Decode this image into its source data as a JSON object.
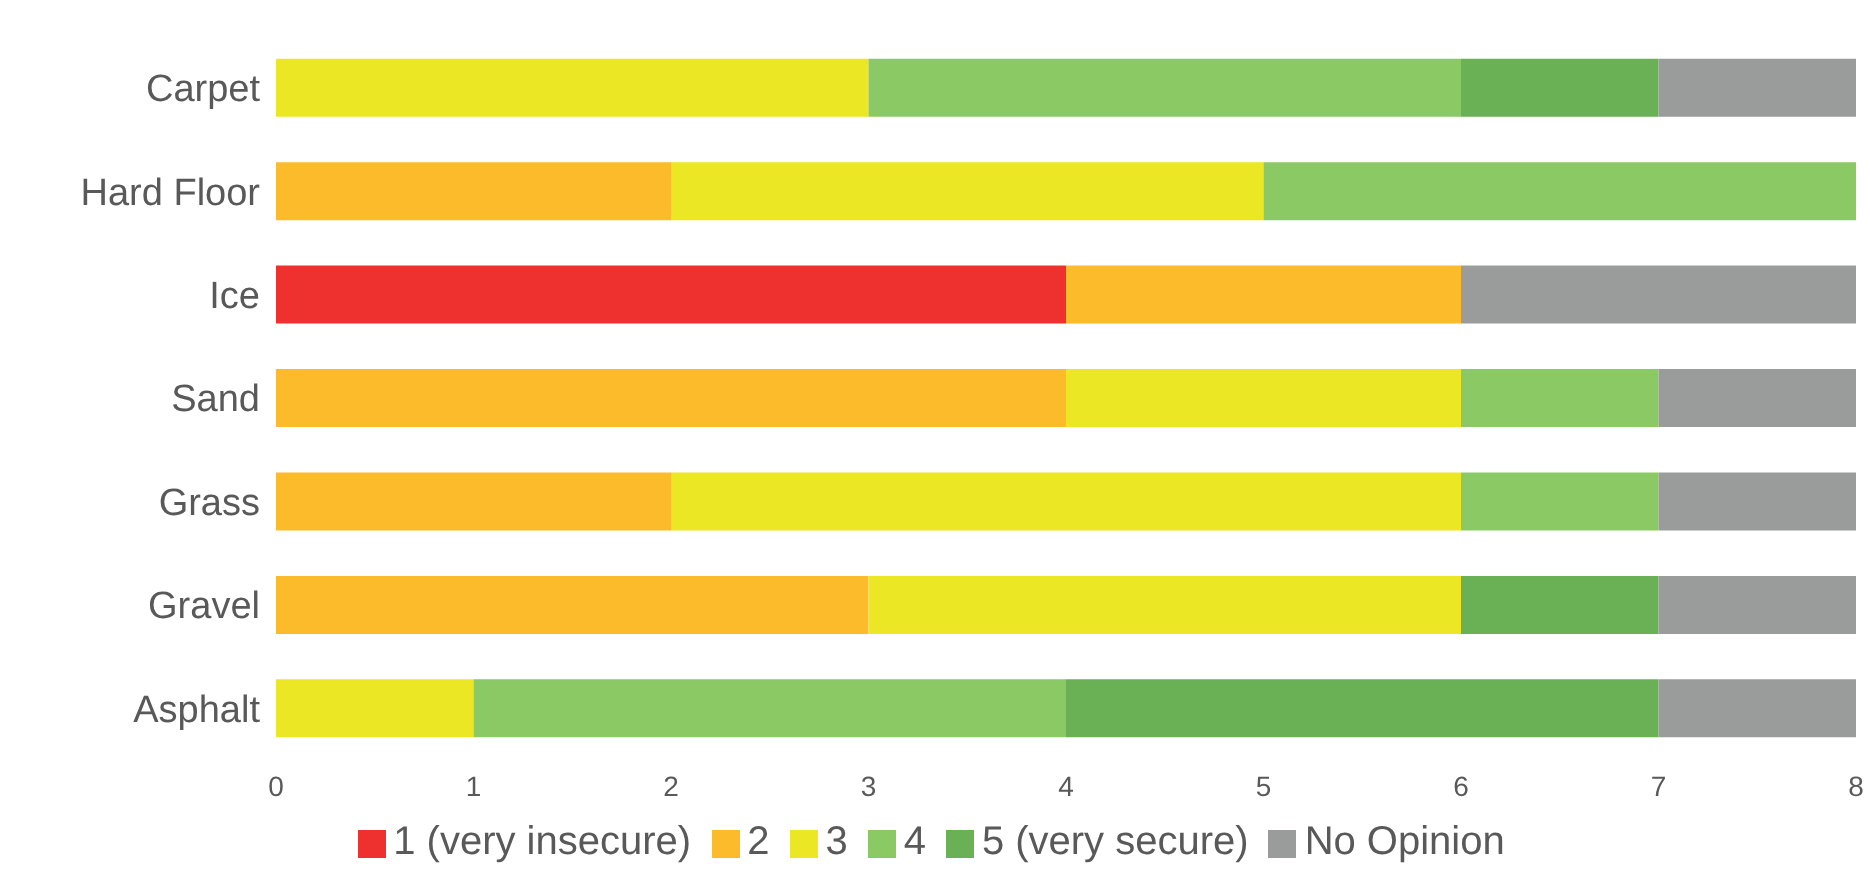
{
  "chart_data": {
    "type": "bar",
    "orientation": "horizontal",
    "stacked": true,
    "categories": [
      "Carpet",
      "Hard Floor",
      "Ice",
      "Sand",
      "Grass",
      "Gravel",
      "Asphalt"
    ],
    "series": [
      {
        "name": "1 (very insecure)",
        "color": "#ee312e",
        "values": [
          null,
          null,
          4,
          null,
          null,
          null,
          null
        ]
      },
      {
        "name": "2",
        "color": "#fbbb2b",
        "values": [
          null,
          2,
          2,
          4,
          2,
          3,
          null
        ]
      },
      {
        "name": "3",
        "color": "#ebe724",
        "values": [
          3,
          3,
          null,
          2,
          4,
          3,
          1
        ]
      },
      {
        "name": "4",
        "color": "#8ac963",
        "values": [
          3,
          3,
          null,
          1,
          1,
          null,
          3
        ]
      },
      {
        "name": "5 (very secure)",
        "color": "#6ab155",
        "values": [
          1,
          null,
          null,
          null,
          null,
          1,
          3
        ]
      },
      {
        "name": "No Opinion",
        "color": "#9a9b9b",
        "values": [
          1,
          null,
          2,
          1,
          1,
          1,
          1
        ]
      }
    ],
    "xlim": [
      0,
      8
    ],
    "xticks": [
      0,
      1,
      2,
      3,
      4,
      5,
      6,
      7,
      8
    ],
    "grid": false,
    "legend": "bottom"
  }
}
